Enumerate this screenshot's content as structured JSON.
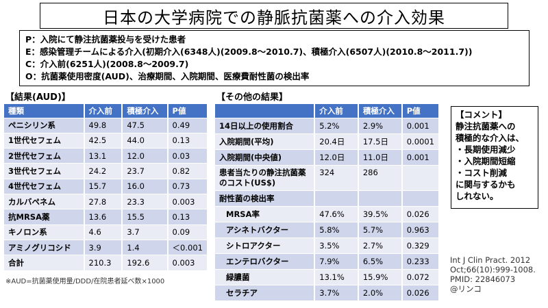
{
  "title": "日本の大学病院での静脈抗菌薬への介入効果",
  "pico": [
    "P：入院にて静注抗菌薬投与を受けた患者",
    "E：感染管理チームによる介入(初期介入(6348人)(2009.8～2010.7)、積極介入(6507人)(2010.8～2011.7))",
    "C：介入前(6251人)(2008.8～2009.7)",
    "O：抗菌薬使用密度(AUD)、治療期間、入院期間、医療費耐性菌の検出率"
  ],
  "aud": {
    "label": "【結果(AUD)】",
    "headers": [
      "種類",
      "介入前",
      "積極介入",
      "P値"
    ],
    "rows": [
      [
        "ペニシリン系",
        "49.8",
        "47.5",
        "0.49"
      ],
      [
        "1世代セフェム",
        "42.5",
        "44.0",
        "0.13"
      ],
      [
        "2世代セフェム",
        "13.1",
        "12.0",
        "0.03"
      ],
      [
        "3世代セフェム",
        "24.2",
        "23.7",
        "0.82"
      ],
      [
        "4世代セフェム",
        "15.7",
        "16.0",
        "0.73"
      ],
      [
        "カルバペネム",
        "27.8",
        "23.3",
        "0.003"
      ],
      [
        "抗MRSA薬",
        "13.6",
        "15.5",
        "0.13"
      ],
      [
        "キノロン系",
        "4.6",
        "3.7",
        "0.09"
      ],
      [
        "アミノグリコシド",
        "3.9",
        "1.4",
        "＜0.001"
      ],
      [
        "合計",
        "210.3",
        "192.6",
        "0.003"
      ]
    ],
    "footnote": "※AUD=抗菌薬使用量/DDD/在院患者延べ数×1000"
  },
  "other": {
    "label": "【その他の結果】",
    "headers": [
      "",
      "介入前",
      "積極介入",
      "P値"
    ],
    "rows": [
      [
        "14日以上の使用割合",
        "5.2%",
        "2.9%",
        "0.001"
      ],
      [
        "入院期間(平均)",
        "20.4日",
        "17.5日",
        "0.0001"
      ],
      [
        "入院期間(中央値)",
        "12.0日",
        "11.0日",
        "0.001"
      ],
      [
        "患者当たりの静注抗菌薬のコスト(US$)",
        "324",
        "286",
        ""
      ],
      [
        "耐性菌の検出率",
        "",
        "",
        ""
      ],
      [
        "MRSA率",
        "47.6%",
        "39.5%",
        "0.026"
      ],
      [
        "アシネトバクター",
        "5.8%",
        "5.7%",
        "0.963"
      ],
      [
        "シトロアクター",
        "3.5%",
        "2.7%",
        "0.329"
      ],
      [
        "エンテロバクター",
        "7.9%",
        "6.5%",
        "0.233"
      ],
      [
        "緑膿菌",
        "13.1%",
        "15.9%",
        "0.072"
      ],
      [
        "セラチア",
        "3.7%",
        "2.0%",
        "0.026"
      ]
    ]
  },
  "comment": [
    "【コメント】",
    "静注抗菌薬への",
    "積極的な介入は、",
    "・長期使用減少",
    "・入院期間短縮",
    "・コスト削減",
    "に関与するかも",
    "しれない。"
  ],
  "citation": [
    "Int J Clin Pract. 2012",
    "Oct;66(10):999-1008.",
    "PMID: 22846073",
    "@リンコ"
  ]
}
